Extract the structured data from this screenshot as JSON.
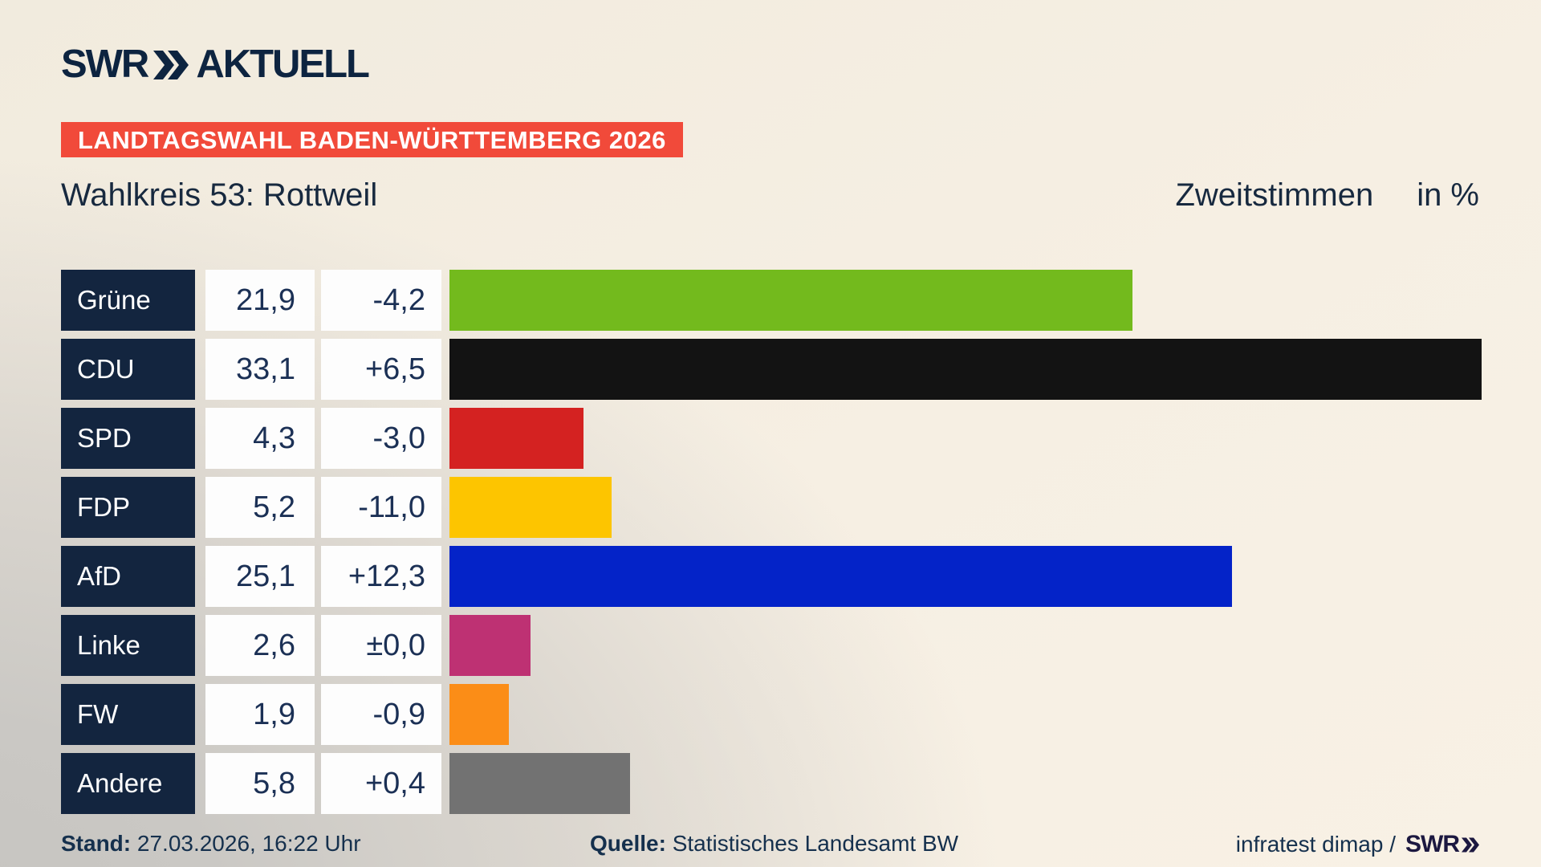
{
  "header": {
    "logo_swr": "SWR",
    "logo_aktuell": "AKTUELL",
    "badge": "LANDTAGSWAHL BADEN-WÜRTTEMBERG 2026"
  },
  "titlebar": {
    "title": "Wahlkreis 53: Rottweil",
    "vote_type": "Zweitstimmen",
    "unit": "in %"
  },
  "chart_data": {
    "type": "bar",
    "orientation": "horizontal",
    "title": "Wahlkreis 53: Rottweil",
    "subtitle": "Zweitstimmen in %",
    "xlim": [
      0,
      35
    ],
    "grid": false,
    "legend": "none",
    "categories": [
      "Grüne",
      "CDU",
      "SPD",
      "FDP",
      "AfD",
      "Linke",
      "FW",
      "Andere"
    ],
    "values": [
      21.9,
      33.1,
      4.3,
      5.2,
      25.1,
      2.6,
      1.9,
      5.8
    ],
    "diffs": [
      -4.2,
      6.5,
      -3.0,
      -11.0,
      12.3,
      0.0,
      -0.9,
      0.4
    ],
    "rows": [
      {
        "party": "Grüne",
        "value": "21,9",
        "diff": "-4,2",
        "value_num": 21.9,
        "color": "#73ba1d"
      },
      {
        "party": "CDU",
        "value": "33,1",
        "diff": "+6,5",
        "value_num": 33.1,
        "color": "#131313"
      },
      {
        "party": "SPD",
        "value": "4,3",
        "diff": "-3,0",
        "value_num": 4.3,
        "color": "#d42221"
      },
      {
        "party": "FDP",
        "value": "5,2",
        "diff": "-11,0",
        "value_num": 5.2,
        "color": "#fdc500"
      },
      {
        "party": "AfD",
        "value": "25,1",
        "diff": "+12,3",
        "value_num": 25.1,
        "color": "#0423c8"
      },
      {
        "party": "Linke",
        "value": "2,6",
        "diff": "±0,0",
        "value_num": 2.6,
        "color": "#be3173"
      },
      {
        "party": "FW",
        "value": "1,9",
        "diff": "-0,9",
        "value_num": 1.9,
        "color": "#fb8d17"
      },
      {
        "party": "Andere",
        "value": "5,8",
        "diff": "+0,4",
        "value_num": 5.8,
        "color": "#727272"
      }
    ],
    "colors": {
      "label_cell_bg": "#13253f",
      "value_cell_bg": "#fdfdfd",
      "text_navy": "#1b3055",
      "badge_red": "#f14a3a",
      "background_cream": "#f7f0e4",
      "background_gray": "#c9c7c3"
    }
  },
  "footer": {
    "stand_label": "Stand:",
    "stand_value": "27.03.2026, 16:22 Uhr",
    "quelle_label": "Quelle:",
    "quelle_value": "Statistisches Landesamt BW",
    "credit_prefix": "infratest dimap /",
    "credit_brand": "SWR"
  }
}
